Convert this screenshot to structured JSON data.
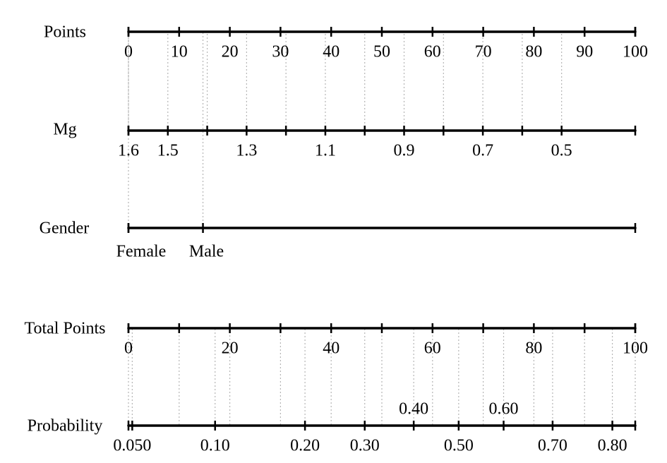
{
  "chart_data": {
    "type": "nomogram",
    "axes": [
      {
        "name": "Points",
        "scale": "linear",
        "lim": [
          0,
          100
        ],
        "ticks": [
          0,
          10,
          20,
          30,
          40,
          50,
          60,
          70,
          80,
          90,
          100
        ]
      },
      {
        "name": "Mg",
        "scale": "linear",
        "lim": [
          1.6,
          0.313
        ],
        "ticks": [
          1.6,
          1.5,
          1.3,
          1.1,
          0.9,
          0.7,
          0.5
        ],
        "minor_ticks": [
          1.4,
          1.2,
          1,
          0.8,
          0.6
        ]
      },
      {
        "name": "Gender",
        "categories": [
          "Female",
          "Male"
        ],
        "points": [
          0,
          14.7
        ]
      },
      {
        "name": "Total Points",
        "scale": "linear",
        "lim": [
          0,
          100
        ],
        "ticks": [
          0,
          20,
          40,
          60,
          80,
          100
        ],
        "minor_ticks": [
          10,
          30,
          50,
          70,
          90
        ]
      },
      {
        "name": "Probability",
        "scale": "logit",
        "lim": [
          0.0484,
          0.831
        ],
        "ticks": [
          {
            "value": 0.05,
            "label": "0.050"
          },
          {
            "value": 0.1,
            "label": "0.10"
          },
          {
            "value": 0.2,
            "label": "0.20"
          },
          {
            "value": 0.3,
            "label": "0.30"
          },
          {
            "value": 0.4,
            "label": "0.40"
          },
          {
            "value": 0.5,
            "label": "0.50"
          },
          {
            "value": 0.6,
            "label": "0.60"
          },
          {
            "value": 0.7,
            "label": "0.70"
          },
          {
            "value": 0.8,
            "label": "0.80"
          }
        ]
      }
    ]
  }
}
